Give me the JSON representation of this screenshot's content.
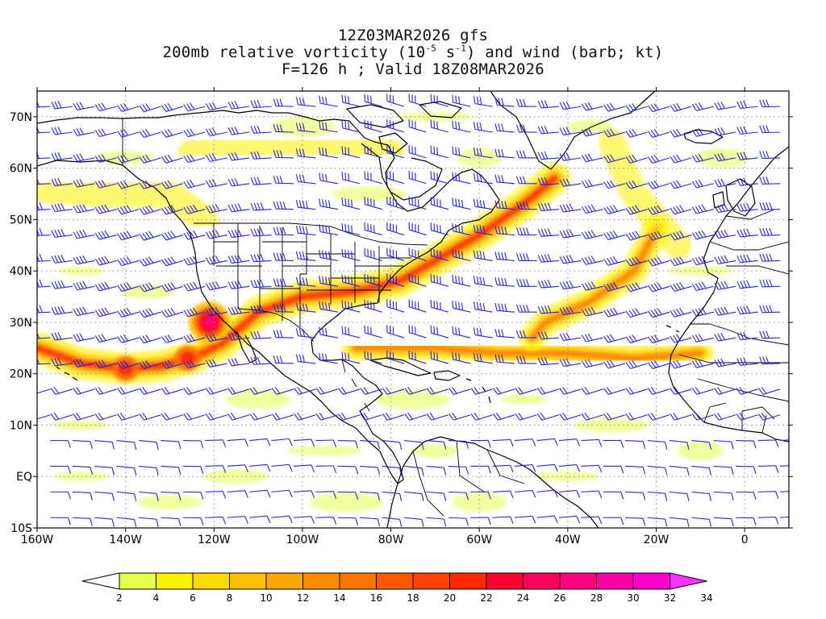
{
  "title": {
    "line1": "12Z03MAR2026 gfs",
    "line2_pre": "200mb relative vorticity (10",
    "line2_exp1": "-5",
    "line2_mid": " s",
    "line2_exp2": "-1",
    "line2_post": ") and wind (barb; kt)",
    "line3": "F=126 h ; Valid 18Z08MAR2026"
  },
  "map": {
    "lon_range": [
      -160,
      10
    ],
    "lat_range": [
      -10,
      75
    ],
    "lat_labels": [
      {
        "value": 70,
        "label": "70N"
      },
      {
        "value": 60,
        "label": "60N"
      },
      {
        "value": 50,
        "label": "50N"
      },
      {
        "value": 40,
        "label": "40N"
      },
      {
        "value": 30,
        "label": "30N"
      },
      {
        "value": 20,
        "label": "20N"
      },
      {
        "value": 10,
        "label": "10N"
      },
      {
        "value": 0,
        "label": "EQ"
      },
      {
        "value": -10,
        "label": "10S"
      }
    ],
    "lon_labels": [
      {
        "value": -160,
        "label": "160W"
      },
      {
        "value": -140,
        "label": "140W"
      },
      {
        "value": -120,
        "label": "120W"
      },
      {
        "value": -100,
        "label": "100W"
      },
      {
        "value": -80,
        "label": "80W"
      },
      {
        "value": -60,
        "label": "60W"
      },
      {
        "value": -40,
        "label": "40W"
      },
      {
        "value": -20,
        "label": "20W"
      },
      {
        "value": 0,
        "label": "0"
      }
    ],
    "colors": {
      "barb": "#2424e0",
      "coast": "#000000",
      "grid": "#888888"
    },
    "vorticity_jets": [
      {
        "name": "pacific-subtropical-jet",
        "path": [
          [
            -160,
            25
          ],
          [
            -150,
            22
          ],
          [
            -140,
            21
          ],
          [
            -132,
            21.5
          ],
          [
            -125,
            23
          ],
          [
            -118,
            26
          ],
          [
            -110,
            32
          ],
          [
            -100,
            35
          ],
          [
            -88,
            36
          ],
          [
            -78,
            38
          ],
          [
            -70,
            42
          ],
          [
            -60,
            47
          ],
          [
            -50,
            53
          ],
          [
            -43,
            58
          ]
        ],
        "level": 3
      },
      {
        "name": "atlantic-jet",
        "path": [
          [
            -88,
            25
          ],
          [
            -70,
            25
          ],
          [
            -55,
            24
          ],
          [
            -40,
            24
          ],
          [
            -25,
            23
          ],
          [
            -10,
            24
          ]
        ],
        "level": 2
      },
      {
        "name": "atlantic-trough",
        "path": [
          [
            -20,
            48
          ],
          [
            -25,
            40
          ],
          [
            -35,
            34
          ],
          [
            -45,
            30
          ],
          [
            -48,
            27
          ]
        ],
        "level": 2
      },
      {
        "name": "north-pacific-band",
        "path": [
          [
            -160,
            56
          ],
          [
            -145,
            55
          ],
          [
            -130,
            55
          ],
          [
            -122,
            50
          ]
        ],
        "level": 1
      },
      {
        "name": "high-lat-band",
        "path": [
          [
            -125,
            63
          ],
          [
            -110,
            64
          ],
          [
            -95,
            65
          ],
          [
            -80,
            63
          ]
        ],
        "level": 1
      },
      {
        "name": "east-atlantic-band",
        "path": [
          [
            -30,
            65
          ],
          [
            -25,
            55
          ],
          [
            -20,
            50
          ],
          [
            -15,
            45
          ]
        ],
        "level": 1
      }
    ],
    "vorticity_max": [
      {
        "lon": -121,
        "lat": 30,
        "level": 4
      },
      {
        "lon": -140,
        "lat": 21,
        "level": 3
      },
      {
        "lon": -126,
        "lat": 23,
        "level": 3
      }
    ]
  },
  "colorbar": {
    "colors": [
      "#ffffff",
      "#e6ff4d",
      "#fff200",
      "#ffd900",
      "#ffbf00",
      "#ffa600",
      "#ff8c00",
      "#ff7300",
      "#ff5900",
      "#ff4000",
      "#ff2600",
      "#ff0033",
      "#ff005a",
      "#ff0080",
      "#ff00a6",
      "#ff00cc",
      "#ff33ff"
    ],
    "labels": [
      "2",
      "4",
      "6",
      "8",
      "10",
      "12",
      "14",
      "16",
      "18",
      "20",
      "22",
      "24",
      "26",
      "28",
      "30",
      "32",
      "34"
    ]
  }
}
